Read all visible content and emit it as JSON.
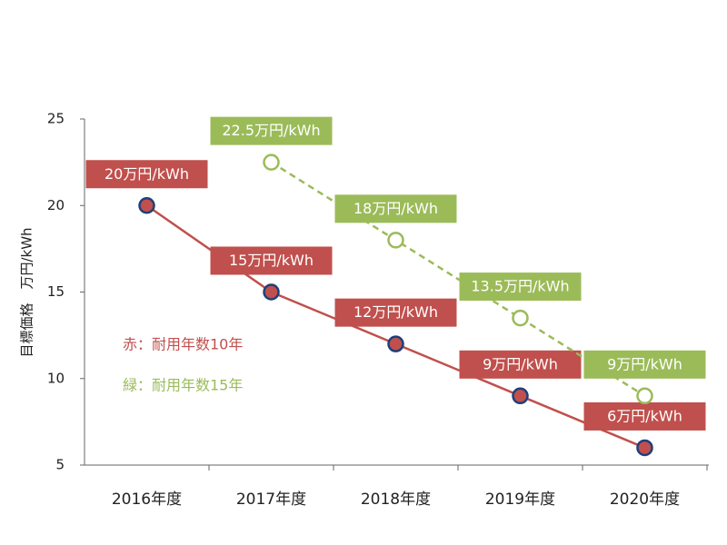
{
  "chart_data": {
    "type": "line",
    "y_label": "目標価格　万円/kWh",
    "categories": [
      "2016年度",
      "2017年度",
      "2018年度",
      "2019年度",
      "2020年度"
    ],
    "series": [
      {
        "name": "赤：耐用年数10年",
        "color": "#c0504d",
        "marker_edge": "#1f3f7a",
        "marker_fill": "#c0504d",
        "dashed": false,
        "values": [
          20,
          15,
          12,
          9,
          6
        ],
        "value_labels": [
          "20万円/kWh",
          "15万円/kWh",
          "12万円/kWh",
          "9万円/kWh",
          "6万円/kWh"
        ]
      },
      {
        "name": "緑：耐用年数15年",
        "color": "#9bbb59",
        "marker_edge": "#9bbb59",
        "marker_fill": "#ffffff",
        "dashed": true,
        "values": [
          null,
          22.5,
          18,
          13.5,
          9
        ],
        "value_labels": [
          null,
          "22.5万円/kWh",
          "18万円/kWh",
          "13.5万円/kWh",
          "9万円/kWh"
        ]
      }
    ],
    "ylim": [
      5,
      25
    ],
    "yticks": [
      5,
      10,
      15,
      20,
      25
    ],
    "grid": false
  }
}
